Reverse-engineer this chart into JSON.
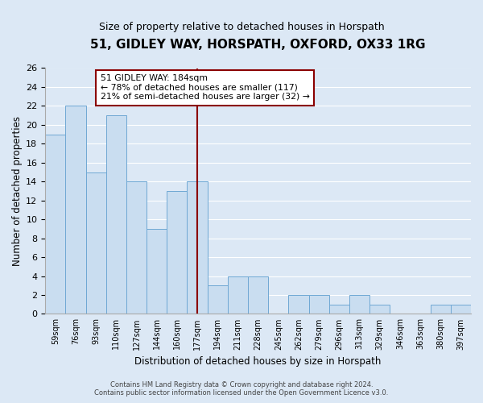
{
  "title": "51, GIDLEY WAY, HORSPATH, OXFORD, OX33 1RG",
  "subtitle": "Size of property relative to detached houses in Horspath",
  "xlabel": "Distribution of detached houses by size in Horspath",
  "ylabel": "Number of detached properties",
  "bar_labels": [
    "59sqm",
    "76sqm",
    "93sqm",
    "110sqm",
    "127sqm",
    "144sqm",
    "160sqm",
    "177sqm",
    "194sqm",
    "211sqm",
    "228sqm",
    "245sqm",
    "262sqm",
    "279sqm",
    "296sqm",
    "313sqm",
    "329sqm",
    "346sqm",
    "363sqm",
    "380sqm",
    "397sqm"
  ],
  "bar_heights": [
    19,
    22,
    15,
    21,
    14,
    9,
    13,
    14,
    3,
    4,
    4,
    0,
    2,
    2,
    1,
    2,
    1,
    0,
    0,
    1,
    1
  ],
  "bar_color": "#c9ddf0",
  "bar_edge_color": "#6fa8d4",
  "ylim": [
    0,
    26
  ],
  "yticks": [
    0,
    2,
    4,
    6,
    8,
    10,
    12,
    14,
    16,
    18,
    20,
    22,
    24,
    26
  ],
  "vline_color": "#8b0000",
  "annotation_title": "51 GIDLEY WAY: 184sqm",
  "annotation_line1": "← 78% of detached houses are smaller (117)",
  "annotation_line2": "21% of semi-detached houses are larger (32) →",
  "footer1": "Contains HM Land Registry data © Crown copyright and database right 2024.",
  "footer2": "Contains public sector information licensed under the Open Government Licence v3.0.",
  "background_color": "#dce8f5",
  "grid_color": "#ffffff",
  "title_fontsize": 11,
  "subtitle_fontsize": 9
}
